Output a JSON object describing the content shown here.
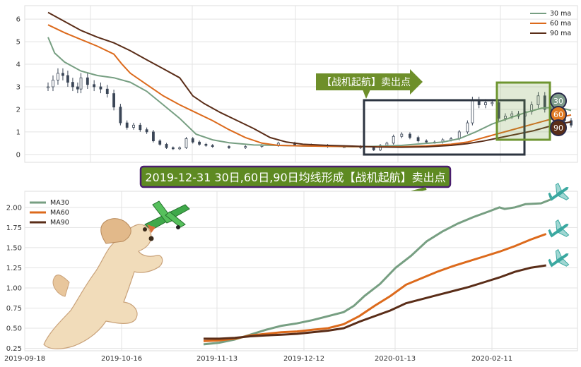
{
  "chart_data": [
    {
      "type": "candlestick",
      "title": "",
      "xlabel": "",
      "ylabel": "",
      "ylim": [
        -0.35,
        6.6
      ],
      "yticks": [
        0,
        1,
        2,
        3,
        4,
        5,
        6
      ],
      "grid": true,
      "legend_position": "top-right",
      "series": [
        {
          "name": "30 ma",
          "color": "#779f82",
          "points": [
            [
              0,
              5.2
            ],
            [
              4,
              4.5
            ],
            [
              10,
              4.1
            ],
            [
              20,
              3.7
            ],
            [
              30,
              3.5
            ],
            [
              40,
              3.4
            ],
            [
              50,
              3.2
            ],
            [
              60,
              2.8
            ],
            [
              70,
              2.2
            ],
            [
              80,
              1.6
            ],
            [
              90,
              0.9
            ],
            [
              100,
              0.65
            ],
            [
              110,
              0.52
            ],
            [
              125,
              0.42
            ],
            [
              140,
              0.4
            ],
            [
              155,
              0.38
            ],
            [
              170,
              0.36
            ],
            [
              185,
              0.34
            ],
            [
              200,
              0.36
            ],
            [
              215,
              0.4
            ],
            [
              228,
              0.48
            ],
            [
              240,
              0.55
            ],
            [
              250,
              0.7
            ],
            [
              260,
              1.0
            ],
            [
              270,
              1.35
            ],
            [
              280,
              1.6
            ],
            [
              290,
              1.85
            ],
            [
              300,
              2.05
            ],
            [
              310,
              2.1
            ],
            [
              318,
              1.95
            ]
          ]
        },
        {
          "name": "60 ma",
          "color": "#dc6a1c",
          "points": [
            [
              0,
              5.75
            ],
            [
              10,
              5.4
            ],
            [
              20,
              5.1
            ],
            [
              30,
              4.8
            ],
            [
              40,
              4.45
            ],
            [
              45,
              4.0
            ],
            [
              50,
              3.6
            ],
            [
              60,
              3.1
            ],
            [
              70,
              2.6
            ],
            [
              80,
              2.2
            ],
            [
              90,
              1.85
            ],
            [
              100,
              1.5
            ],
            [
              110,
              1.1
            ],
            [
              120,
              0.75
            ],
            [
              130,
              0.5
            ],
            [
              140,
              0.4
            ],
            [
              155,
              0.38
            ],
            [
              170,
              0.36
            ],
            [
              185,
              0.35
            ],
            [
              200,
              0.34
            ],
            [
              215,
              0.34
            ],
            [
              230,
              0.38
            ],
            [
              245,
              0.45
            ],
            [
              255,
              0.55
            ],
            [
              265,
              0.75
            ],
            [
              275,
              0.95
            ],
            [
              285,
              1.15
            ],
            [
              295,
              1.35
            ],
            [
              305,
              1.55
            ],
            [
              318,
              1.75
            ]
          ]
        },
        {
          "name": "90 ma",
          "color": "#5a2d18",
          "points": [
            [
              0,
              6.3
            ],
            [
              10,
              5.9
            ],
            [
              20,
              5.5
            ],
            [
              30,
              5.2
            ],
            [
              40,
              4.95
            ],
            [
              50,
              4.6
            ],
            [
              60,
              4.2
            ],
            [
              70,
              3.8
            ],
            [
              80,
              3.4
            ],
            [
              88,
              2.6
            ],
            [
              95,
              2.25
            ],
            [
              105,
              1.85
            ],
            [
              115,
              1.5
            ],
            [
              125,
              1.15
            ],
            [
              135,
              0.75
            ],
            [
              145,
              0.55
            ],
            [
              155,
              0.45
            ],
            [
              170,
              0.4
            ],
            [
              185,
              0.37
            ],
            [
              200,
              0.33
            ],
            [
              215,
              0.32
            ],
            [
              230,
              0.34
            ],
            [
              245,
              0.4
            ],
            [
              255,
              0.48
            ],
            [
              265,
              0.6
            ],
            [
              275,
              0.75
            ],
            [
              285,
              0.9
            ],
            [
              295,
              1.05
            ],
            [
              305,
              1.25
            ],
            [
              318,
              1.45
            ]
          ]
        }
      ],
      "ohlc_closes": [
        [
          0,
          3.0
        ],
        [
          3,
          3.3
        ],
        [
          6,
          3.6
        ],
        [
          9,
          3.5
        ],
        [
          12,
          3.2
        ],
        [
          15,
          3.0
        ],
        [
          18,
          2.9
        ],
        [
          20,
          3.4
        ],
        [
          24,
          3.1
        ],
        [
          28,
          3.0
        ],
        [
          32,
          2.9
        ],
        [
          36,
          2.7
        ],
        [
          40,
          2.1
        ],
        [
          44,
          1.4
        ],
        [
          48,
          1.2
        ],
        [
          52,
          1.3
        ],
        [
          56,
          1.1
        ],
        [
          60,
          1.0
        ],
        [
          64,
          0.6
        ],
        [
          68,
          0.45
        ],
        [
          72,
          0.3
        ],
        [
          76,
          0.25
        ],
        [
          80,
          0.3
        ],
        [
          84,
          0.7
        ],
        [
          88,
          0.55
        ],
        [
          92,
          0.45
        ],
        [
          96,
          0.4
        ],
        [
          100,
          0.35
        ],
        [
          110,
          0.3
        ],
        [
          120,
          0.35
        ],
        [
          130,
          0.4
        ],
        [
          140,
          0.5
        ],
        [
          150,
          0.42
        ],
        [
          160,
          0.4
        ],
        [
          170,
          0.35
        ],
        [
          180,
          0.35
        ],
        [
          190,
          0.3
        ],
        [
          198,
          0.2
        ],
        [
          202,
          0.4
        ],
        [
          206,
          0.5
        ],
        [
          210,
          0.8
        ],
        [
          215,
          0.9
        ],
        [
          220,
          0.75
        ],
        [
          225,
          0.6
        ],
        [
          230,
          0.55
        ],
        [
          235,
          0.55
        ],
        [
          240,
          0.65
        ],
        [
          245,
          0.7
        ],
        [
          250,
          1.0
        ],
        [
          255,
          1.4
        ],
        [
          258,
          2.4
        ],
        [
          262,
          2.2
        ],
        [
          266,
          2.3
        ],
        [
          270,
          2.3
        ],
        [
          274,
          1.6
        ],
        [
          278,
          1.7
        ],
        [
          282,
          1.8
        ],
        [
          286,
          1.7
        ],
        [
          290,
          1.9
        ],
        [
          294,
          2.2
        ],
        [
          298,
          2.6
        ],
        [
          302,
          2.0
        ],
        [
          306,
          1.9
        ],
        [
          310,
          1.7
        ],
        [
          314,
          1.5
        ],
        [
          318,
          1.3
        ]
      ],
      "markers": [
        {
          "label": "30",
          "color": "#7e9c8a"
        },
        {
          "label": "60",
          "color": "#e07a24"
        },
        {
          "label": "90",
          "color": "#5a2d18"
        }
      ],
      "annotation": "【战机起航】卖出点"
    },
    {
      "type": "line",
      "title": "",
      "xlabel": "",
      "ylabel": "",
      "ylim": [
        0.22,
        2.2
      ],
      "yticks": [
        0.25,
        0.5,
        0.75,
        1.0,
        1.25,
        1.5,
        1.75,
        2.0
      ],
      "ytick_labels": [
        "0.25",
        "0.50",
        "0.75",
        "1.00",
        "1.25",
        "1.50",
        "1.75",
        "2.00"
      ],
      "x_ticks": [
        "2019-09-18",
        "2019-10-16",
        "2019-11-13",
        "2019-12-12",
        "2020-01-13",
        "2020-02-11"
      ],
      "grid": true,
      "legend_position": "top-left",
      "series": [
        {
          "name": "MA30",
          "color": "#779f82",
          "points": [
            [
              0,
              0.3
            ],
            [
              3,
              0.32
            ],
            [
              6,
              0.36
            ],
            [
              9,
              0.42
            ],
            [
              12,
              0.48
            ],
            [
              15,
              0.53
            ],
            [
              18,
              0.56
            ],
            [
              21,
              0.6
            ],
            [
              24,
              0.65
            ],
            [
              27,
              0.7
            ],
            [
              29,
              0.78
            ],
            [
              31,
              0.9
            ],
            [
              34,
              1.05
            ],
            [
              37,
              1.25
            ],
            [
              40,
              1.4
            ],
            [
              43,
              1.58
            ],
            [
              46,
              1.7
            ],
            [
              49,
              1.8
            ],
            [
              52,
              1.88
            ],
            [
              55,
              1.95
            ],
            [
              57,
              2.0
            ],
            [
              58,
              1.98
            ],
            [
              60,
              2.0
            ],
            [
              62,
              2.04
            ],
            [
              65,
              2.05
            ],
            [
              67,
              2.1
            ]
          ]
        },
        {
          "name": "MA60",
          "color": "#dc6a1c",
          "points": [
            [
              0,
              0.34
            ],
            [
              3,
              0.35
            ],
            [
              6,
              0.37
            ],
            [
              9,
              0.41
            ],
            [
              12,
              0.43
            ],
            [
              15,
              0.45
            ],
            [
              18,
              0.46
            ],
            [
              21,
              0.48
            ],
            [
              24,
              0.5
            ],
            [
              27,
              0.55
            ],
            [
              30,
              0.65
            ],
            [
              33,
              0.78
            ],
            [
              36,
              0.9
            ],
            [
              39,
              1.04
            ],
            [
              42,
              1.12
            ],
            [
              45,
              1.2
            ],
            [
              48,
              1.27
            ],
            [
              51,
              1.33
            ],
            [
              54,
              1.39
            ],
            [
              57,
              1.45
            ],
            [
              60,
              1.52
            ],
            [
              63,
              1.6
            ],
            [
              66,
              1.67
            ]
          ]
        },
        {
          "name": "MA90",
          "color": "#5a2d18",
          "points": [
            [
              0,
              0.37
            ],
            [
              3,
              0.37
            ],
            [
              6,
              0.38
            ],
            [
              9,
              0.4
            ],
            [
              12,
              0.41
            ],
            [
              15,
              0.42
            ],
            [
              18,
              0.43
            ],
            [
              21,
              0.45
            ],
            [
              24,
              0.47
            ],
            [
              27,
              0.5
            ],
            [
              30,
              0.58
            ],
            [
              33,
              0.65
            ],
            [
              36,
              0.72
            ],
            [
              39,
              0.81
            ],
            [
              42,
              0.86
            ],
            [
              45,
              0.91
            ],
            [
              48,
              0.96
            ],
            [
              51,
              1.01
            ],
            [
              54,
              1.07
            ],
            [
              57,
              1.13
            ],
            [
              60,
              1.2
            ],
            [
              63,
              1.25
            ],
            [
              66,
              1.28
            ]
          ]
        }
      ]
    }
  ],
  "banner": "2019-12-31 30日,60日,90日均线形成【战机起航】卖出点"
}
